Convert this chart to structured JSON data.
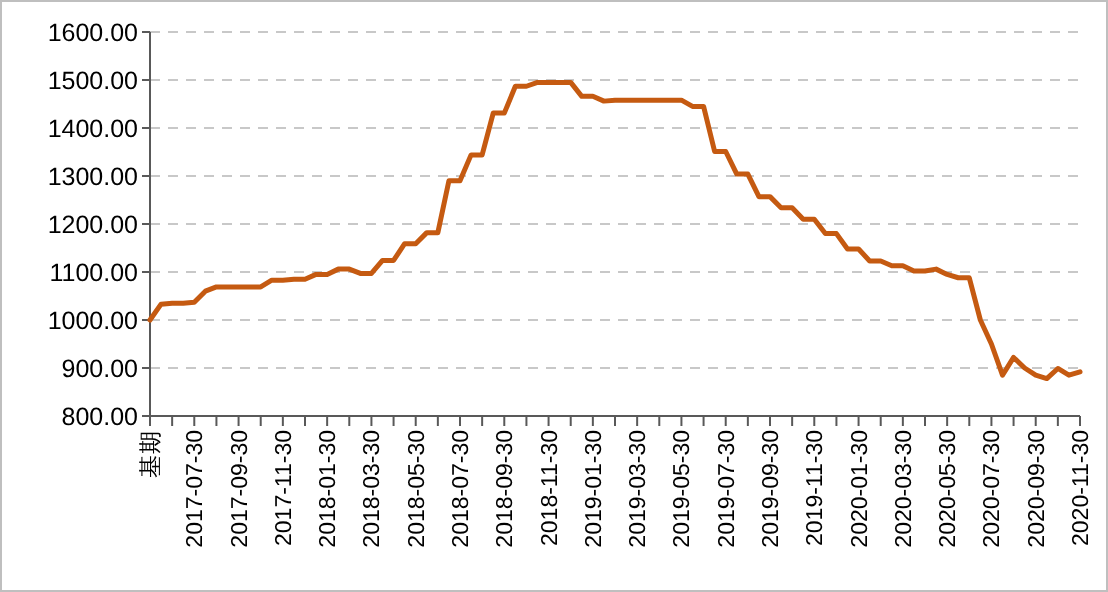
{
  "chart_data": {
    "type": "line",
    "categories": [
      "基期",
      null,
      null,
      null,
      "2017-07-30",
      null,
      null,
      null,
      "2017-09-30",
      null,
      null,
      null,
      "2017-11-30",
      null,
      null,
      null,
      "2018-01-30",
      null,
      null,
      null,
      "2018-03-30",
      null,
      null,
      null,
      "2018-05-30",
      null,
      null,
      null,
      "2018-07-30",
      null,
      null,
      null,
      "2018-09-30",
      null,
      null,
      null,
      "2018-11-30",
      null,
      null,
      null,
      "2019-01-30",
      null,
      null,
      null,
      "2019-03-30",
      null,
      null,
      null,
      "2019-05-30",
      null,
      null,
      null,
      "2019-07-30",
      null,
      null,
      null,
      "2019-09-30",
      null,
      null,
      null,
      "2019-11-30",
      null,
      null,
      null,
      "2020-01-30",
      null,
      null,
      null,
      "2020-03-30",
      null,
      null,
      null,
      "2020-05-30",
      null,
      null,
      null,
      "2020-07-30",
      null,
      null,
      null,
      "2020-09-30",
      null,
      null,
      null,
      "2020-11-30"
    ],
    "series": [
      {
        "color": "#c55a11",
        "values": [
          1000,
          1033,
          1035,
          1035,
          1037,
          1060,
          1069,
          1069,
          1069,
          1069,
          1069,
          1083,
          1083,
          1085,
          1085,
          1095,
          1095,
          1106,
          1106,
          1097,
          1097,
          1124,
          1124,
          1159,
          1159,
          1182,
          1182,
          1290,
          1290,
          1344,
          1344,
          1431,
          1431,
          1487,
          1487,
          1495,
          1495,
          1495,
          1495,
          1466,
          1466,
          1456,
          1458,
          1458,
          1458,
          1458,
          1458,
          1458,
          1458,
          1445,
          1445,
          1351,
          1351,
          1304,
          1304,
          1257,
          1257,
          1234,
          1234,
          1210,
          1210,
          1180,
          1180,
          1148,
          1148,
          1123,
          1123,
          1113,
          1113,
          1102,
          1102,
          1106,
          1095,
          1088,
          1088,
          1000,
          950,
          885,
          922,
          900,
          885,
          878,
          899,
          885,
          892
        ]
      }
    ],
    "ylim": [
      800,
      1600
    ],
    "yticks": [
      {
        "value": 800,
        "label": "800.00"
      },
      {
        "value": 900,
        "label": "900.00"
      },
      {
        "value": 1000,
        "label": "1000.00"
      },
      {
        "value": 1100,
        "label": "1100.00"
      },
      {
        "value": 1200,
        "label": "1200.00"
      },
      {
        "value": 1300,
        "label": "1300.00"
      },
      {
        "value": 1400,
        "label": "1400.00"
      },
      {
        "value": 1500,
        "label": "1500.00"
      },
      {
        "value": 1600,
        "label": "1600.00"
      }
    ],
    "grid": "y",
    "line_style": "solid",
    "marker": "none"
  }
}
